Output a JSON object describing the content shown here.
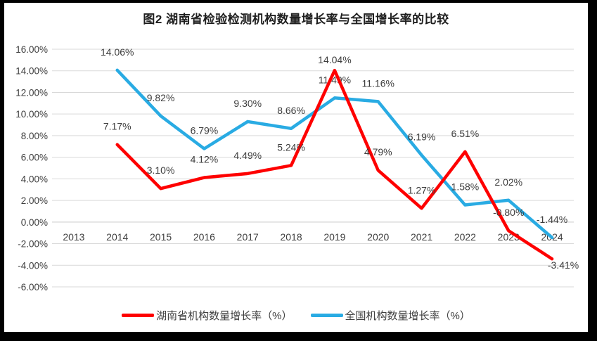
{
  "title": "图2 湖南省检验检测机构数量增长率与全国增长率的比较",
  "chart_data": {
    "type": "line",
    "title": "图2 湖南省检验检测机构数量增长率与全国增长率的比较",
    "categories": [
      "2013",
      "2014",
      "2015",
      "2016",
      "2017",
      "2018",
      "2019",
      "2020",
      "2021",
      "2022",
      "2023",
      "2024"
    ],
    "y_ticks": [
      "16.00%",
      "14.00%",
      "12.00%",
      "10.00%",
      "8.00%",
      "6.00%",
      "4.00%",
      "2.00%",
      "0.00%",
      "-2.00%",
      "-4.00%",
      "-6.00%"
    ],
    "ylim": [
      -6,
      16
    ],
    "y_tick_step": 2,
    "grid": true,
    "legend_position": "bottom",
    "series": [
      {
        "key": "hunan",
        "name": "湖南省机构数量增长率（%）",
        "color": "#FE0000",
        "start_category": "2014",
        "start_index": 1,
        "values": [
          7.17,
          3.1,
          4.12,
          4.49,
          5.24,
          14.04,
          4.79,
          1.27,
          6.51,
          -0.8,
          -3.41
        ],
        "labels": [
          "7.17%",
          "3.10%",
          "4.12%",
          "4.49%",
          "5.24%",
          "14.04%",
          "4.79%",
          "1.27%",
          "6.51%",
          "-0.80%",
          "-3.41%"
        ],
        "label_offsets": {
          "5": [
            0,
            -10
          ],
          "10": [
            16,
            14
          ]
        }
      },
      {
        "key": "national",
        "name": "全国机构数量增长率（%）",
        "color": "#29ABE3",
        "start_category": "2014",
        "start_index": 1,
        "values": [
          14.06,
          9.82,
          6.79,
          9.3,
          8.66,
          11.49,
          11.16,
          6.19,
          1.58,
          2.02,
          -1.44
        ],
        "labels": [
          "14.06%",
          "9.82%",
          "6.79%",
          "9.30%",
          "8.66%",
          "11.49%",
          "11.16%",
          "6.19%",
          "1.58%",
          "2.02%",
          "-1.44%"
        ],
        "label_offsets": {}
      }
    ]
  }
}
